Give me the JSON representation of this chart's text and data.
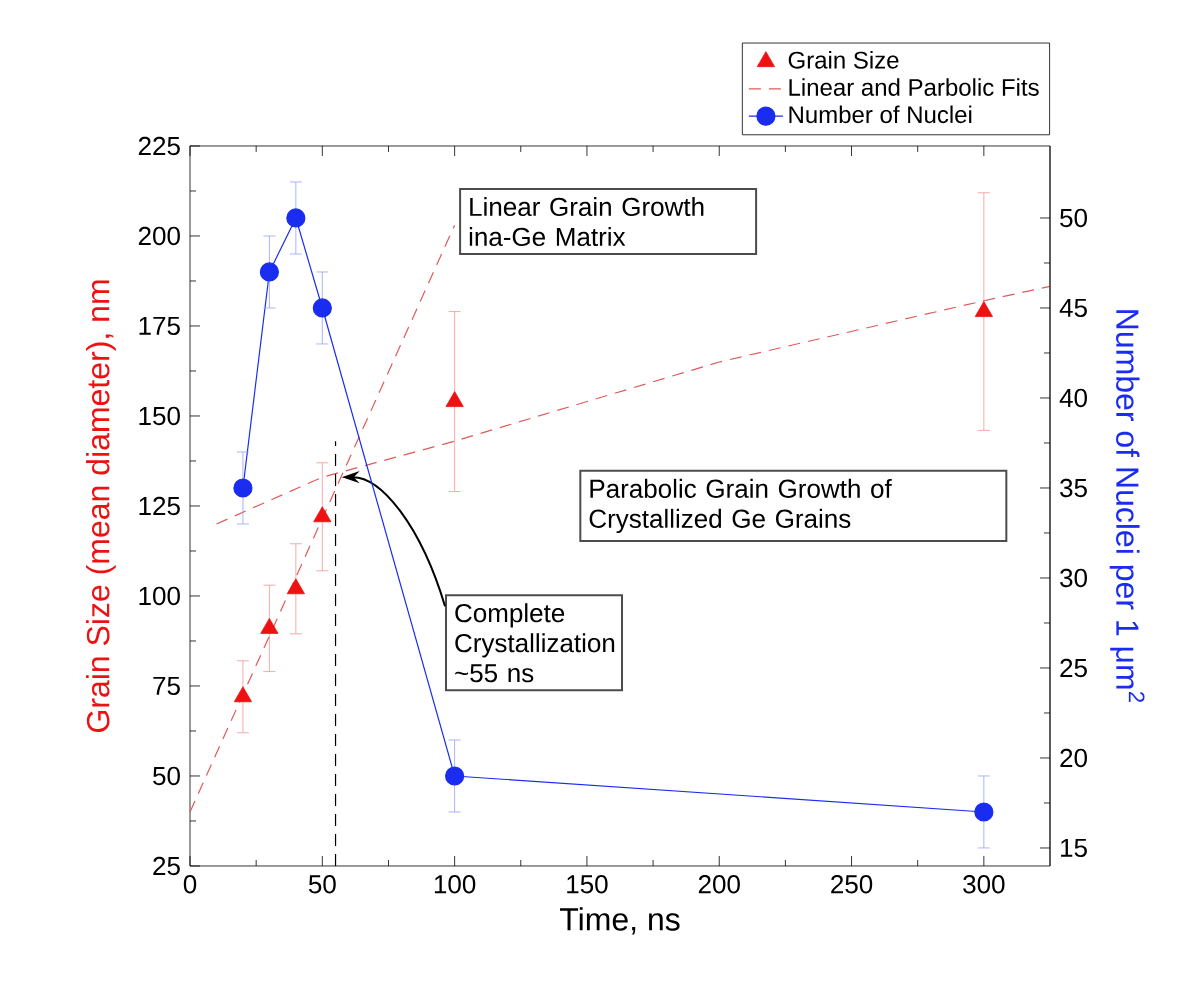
{
  "chart_data": {
    "type": "scatter",
    "xlabel": "Time, ns",
    "ylabel": "Grain Size (mean diameter), nm",
    "y2label": "Number of Nuclei per 1 μm$^{2}$",
    "xlim": [
      0,
      325
    ],
    "xticks": [
      0,
      50,
      100,
      150,
      200,
      250,
      300
    ],
    "ylim": [
      25,
      225
    ],
    "yticks": [
      25,
      50,
      75,
      100,
      125,
      150,
      175,
      200,
      225
    ],
    "y2lim": [
      14,
      54
    ],
    "y2ticks": [
      15,
      20,
      25,
      30,
      35,
      40,
      45,
      50
    ],
    "legend": "top right",
    "grid": false,
    "series": [
      {
        "name": "Grain Size",
        "color": "#ee1111",
        "marker": "triangle",
        "x": [
          20,
          30,
          40,
          50,
          100,
          300
        ],
        "values": [
          72,
          91,
          102,
          122,
          154,
          179
        ],
        "errors": [
          10,
          12,
          12.5,
          15,
          25,
          33
        ]
      },
      {
        "name": "Linear and Parbolic Fits",
        "type": "line",
        "color": "#e05a5a",
        "marker": "none",
        "line_style": "dashed",
        "x": [
          0,
          100
        ],
        "values": [
          40,
          203
        ]
      },
      {
        "type": "line",
        "color": "#e05a5a",
        "marker": "none",
        "line_style": "dashed",
        "x": [
          10,
          50,
          100,
          200,
          300,
          325
        ],
        "values": [
          120,
          133,
          143,
          165,
          182,
          186
        ]
      },
      {
        "type": "line",
        "color": "#000000",
        "marker": "none",
        "line_style": "dashed",
        "x": [
          55,
          55
        ],
        "values": [
          25,
          143
        ]
      },
      {
        "name": "Number of Nuclei",
        "type": "line",
        "axis": "y2",
        "color": "#1a2cf0",
        "marker": "circle",
        "line_style": "solid",
        "x": [
          20,
          30,
          40,
          50,
          100,
          300
        ],
        "values": [
          35,
          47,
          50,
          45,
          19,
          17
        ],
        "errors": [
          2,
          2,
          2,
          2,
          2,
          2
        ]
      }
    ],
    "annotations": [
      "Linear Grain Growth ina-Ge Matrix",
      "Parabolic Grain Growth of Crystallized Ge Grains",
      {
        "text": "Complete Crystallization ~55 ns",
        "x": 55,
        "y": 133
      }
    ]
  }
}
